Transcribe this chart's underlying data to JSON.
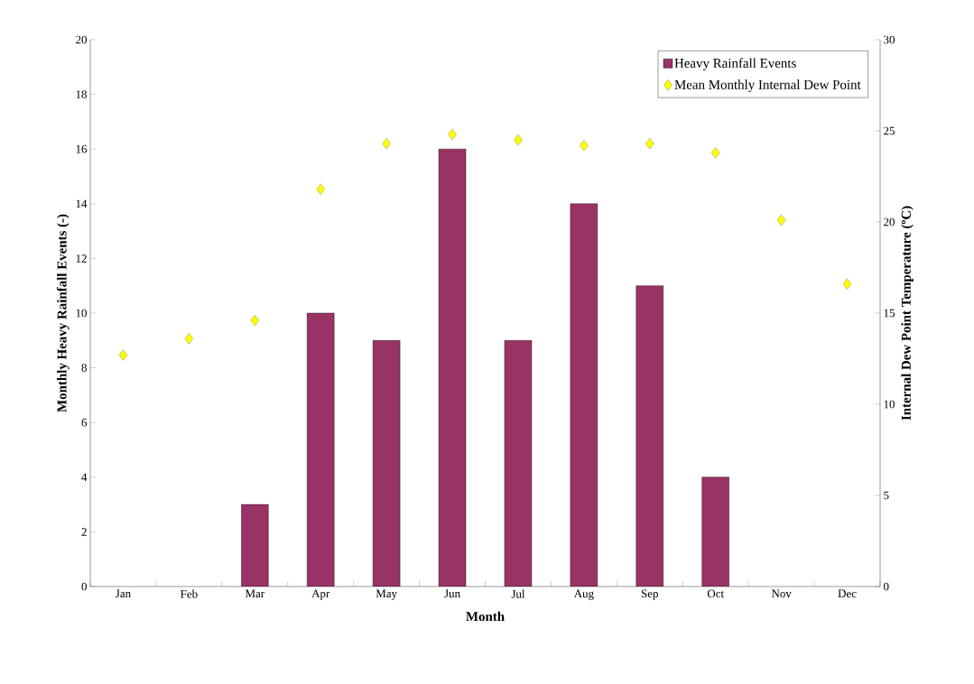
{
  "chart_data": {
    "type": "bar",
    "xlabel": "Month",
    "ylabel": "Monthly Heavy Rainfall Events (-)",
    "y2label": "Internal Dew Point Temperature (ºC)",
    "categories": [
      "Jan",
      "Feb",
      "Mar",
      "Apr",
      "May",
      "Jun",
      "Jul",
      "Aug",
      "Sep",
      "Oct",
      "Nov",
      "Dec"
    ],
    "series": [
      {
        "name": "Heavy Rainfall Events",
        "color": "#993366",
        "values": [
          null,
          null,
          3,
          10,
          9,
          16,
          9,
          14,
          11,
          4,
          null,
          null
        ]
      },
      {
        "name": "Mean Monthly Internal Dew Point",
        "type": "scatter",
        "axis": "y2",
        "color": "#ffff00",
        "values": [
          12.7,
          13.6,
          14.6,
          21.8,
          24.3,
          24.8,
          24.5,
          24.2,
          24.3,
          23.8,
          20.1,
          16.6
        ]
      }
    ],
    "ylim": [
      0,
      20
    ],
    "yticks": [
      0,
      2,
      4,
      6,
      8,
      10,
      12,
      14,
      16,
      18,
      20
    ],
    "y2lim": [
      0,
      30
    ],
    "y2ticks": [
      0,
      5,
      10,
      15,
      20,
      25,
      30
    ],
    "marker": "diamond",
    "legend": "top right"
  }
}
